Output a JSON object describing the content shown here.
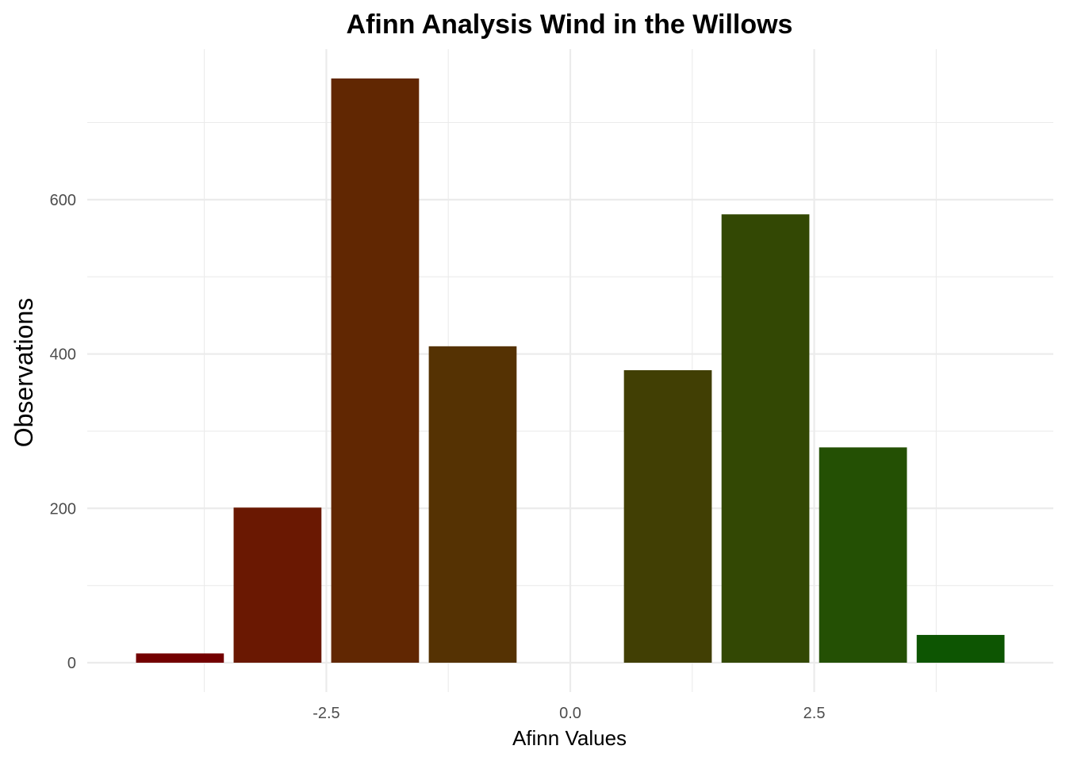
{
  "chart_data": {
    "type": "bar",
    "title": "Afinn Analysis Wind in the Willows",
    "xlabel": "Afinn Values",
    "ylabel": "Observations",
    "x": [
      -4,
      -3,
      -2,
      -1,
      1,
      2,
      3,
      4
    ],
    "values": [
      12,
      201,
      757,
      410,
      379,
      581,
      279,
      36
    ],
    "colors": [
      "#730000",
      "#6A1802",
      "#612702",
      "#553203",
      "#413F04",
      "#334804",
      "#245004",
      "#0D5502"
    ],
    "xlim": [
      -4.95,
      4.95
    ],
    "ylim": [
      -38,
      795
    ],
    "x_ticks": [
      -2.5,
      0.0,
      2.5
    ],
    "x_tick_labels": [
      "-2.5",
      "0.0",
      "2.5"
    ],
    "y_ticks": [
      0,
      200,
      400,
      600
    ],
    "y_tick_labels": [
      "0",
      "200",
      "400",
      "600"
    ],
    "grid": true,
    "legend": "none"
  }
}
